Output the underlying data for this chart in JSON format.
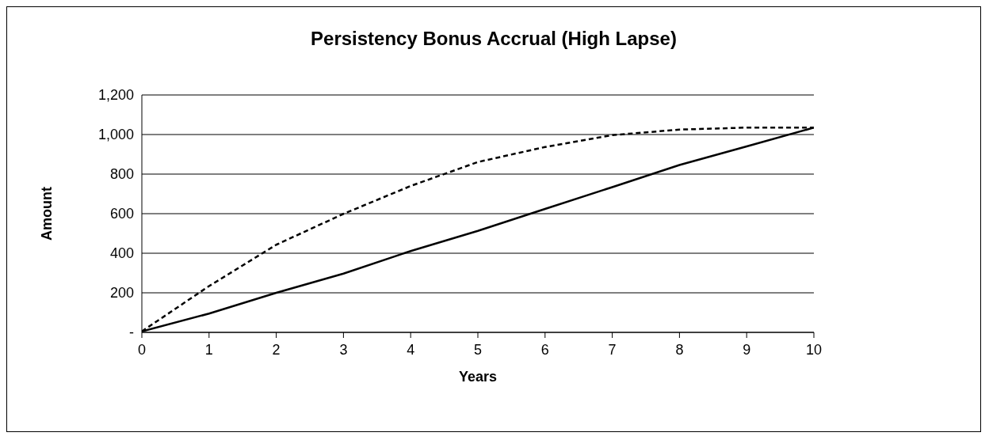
{
  "chart_data": {
    "type": "line",
    "title": "Persistency Bonus Accrual (High Lapse)",
    "xlabel": "Years",
    "ylabel": "Amount",
    "x": [
      0,
      1,
      2,
      3,
      4,
      5,
      6,
      7,
      8,
      9,
      10
    ],
    "series": [
      {
        "color": "#000000",
        "line_style": "dashed",
        "values": [
          5,
          234,
          443,
          599,
          740,
          861,
          937,
          997,
          1025,
          1035,
          1035
        ]
      },
      {
        "color": "#000000",
        "line_style": "solid",
        "values": [
          5,
          95,
          200,
          297,
          411,
          513,
          624,
          734,
          846,
          940,
          1035
        ]
      }
    ],
    "xlim": [
      0,
      10
    ],
    "xticks": [
      0,
      1,
      2,
      3,
      4,
      5,
      6,
      7,
      8,
      9,
      10
    ],
    "ylim": [
      0,
      1200
    ],
    "yticks": [
      {
        "value": 0,
        "label": "-"
      },
      {
        "value": 200,
        "label": "200"
      },
      {
        "value": 400,
        "label": "400"
      },
      {
        "value": 600,
        "label": "600"
      },
      {
        "value": 800,
        "label": "800"
      },
      {
        "value": 1000,
        "label": "1,000"
      },
      {
        "value": 1200,
        "label": "1,200"
      }
    ],
    "grid": "y",
    "marker": "none"
  }
}
